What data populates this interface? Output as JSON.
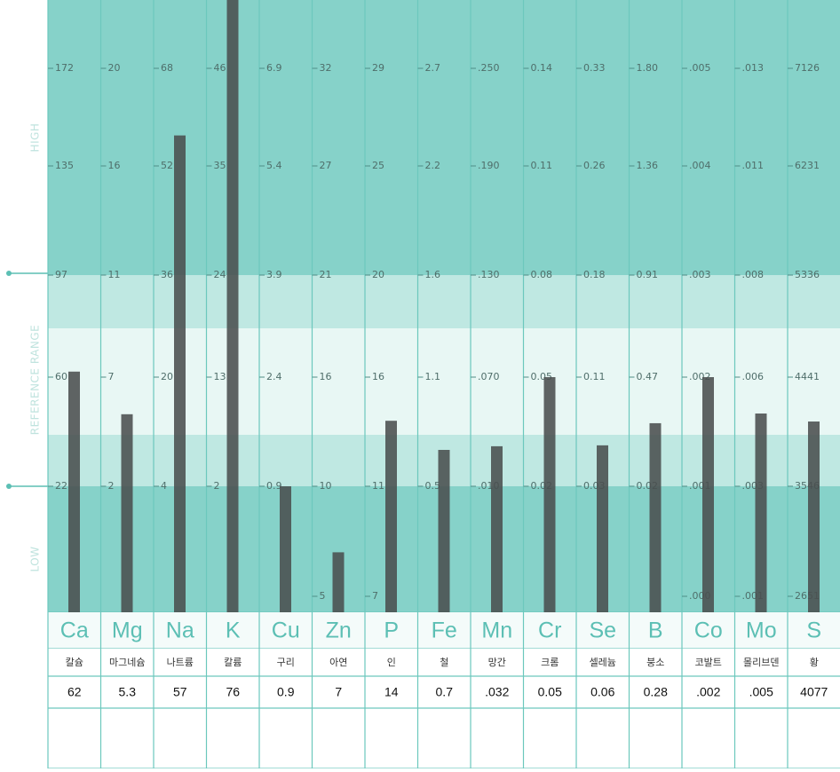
{
  "side_labels": {
    "high": "HIGH",
    "reference": "REFERENCE RANGE",
    "low": "LOW"
  },
  "columns": [
    {
      "symbol": "Ca",
      "name": "칼슘",
      "value": 62,
      "ticks": [
        172,
        135,
        97,
        60,
        22
      ]
    },
    {
      "symbol": "Mg",
      "name": "마그네슘",
      "value": 5.3,
      "ticks": [
        20,
        16,
        11,
        7,
        2
      ]
    },
    {
      "symbol": "Na",
      "name": "나트륨",
      "value": 57,
      "ticks": [
        68,
        52,
        36,
        20,
        4
      ]
    },
    {
      "symbol": "K",
      "name": "칼륨",
      "value": 76,
      "ticks": [
        46,
        35,
        24,
        13,
        2
      ]
    },
    {
      "symbol": "Cu",
      "name": "구리",
      "value": 0.9,
      "ticks": [
        6.9,
        5.4,
        3.9,
        2.4,
        0.9
      ]
    },
    {
      "symbol": "Zn",
      "name": "아연",
      "value": 7,
      "ticks": [
        32,
        27,
        21,
        16,
        10,
        5
      ]
    },
    {
      "symbol": "P",
      "name": "인",
      "value": 14,
      "ticks": [
        29,
        25,
        20,
        16,
        11,
        7
      ]
    },
    {
      "symbol": "Fe",
      "name": "철",
      "value": 0.7,
      "ticks": [
        2.7,
        2.2,
        1.6,
        1.1,
        0.5
      ]
    },
    {
      "symbol": "Mn",
      "name": "망간",
      "value": 0.032,
      "value_label": ".032",
      "ticks": [
        {
          "value": 0.25,
          "label": ".250"
        },
        {
          "value": 0.19,
          "label": ".190"
        },
        {
          "value": 0.13,
          "label": ".130"
        },
        {
          "value": 0.07,
          "label": ".070"
        },
        {
          "value": 0.01,
          "label": ".010"
        }
      ]
    },
    {
      "symbol": "Cr",
      "name": "크롬",
      "value": 0.05,
      "ticks": [
        0.14,
        0.11,
        0.08,
        0.05,
        0.02
      ]
    },
    {
      "symbol": "Se",
      "name": "셀레늄",
      "value": 0.06,
      "ticks": [
        0.33,
        0.26,
        0.18,
        0.11,
        0.03
      ]
    },
    {
      "symbol": "B",
      "name": "붕소",
      "value": 0.28,
      "ticks": [
        {
          "value": 1.8,
          "label": "1.80"
        },
        1.36,
        0.91,
        0.47,
        0.02
      ]
    },
    {
      "symbol": "Co",
      "name": "코발트",
      "value": 0.002,
      "value_label": ".002",
      "ticks": [
        {
          "value": 0.005,
          "label": ".005"
        },
        {
          "value": 0.004,
          "label": ".004"
        },
        {
          "value": 0.003,
          "label": ".003"
        },
        {
          "value": 0.002,
          "label": ".002"
        },
        {
          "value": 0.001,
          "label": ".001"
        },
        {
          "value": 0,
          "label": ".000"
        }
      ]
    },
    {
      "symbol": "Mo",
      "name": "몰리브덴",
      "value": 0.005,
      "value_label": ".005",
      "ticks": [
        {
          "value": 0.013,
          "label": ".013"
        },
        {
          "value": 0.011,
          "label": ".011"
        },
        {
          "value": 0.008,
          "label": ".008"
        },
        {
          "value": 0.006,
          "label": ".006"
        },
        {
          "value": 0.003,
          "label": ".003"
        },
        {
          "value": 0.001,
          "label": ".001"
        }
      ]
    },
    {
      "symbol": "S",
      "name": "황",
      "value": 4077,
      "ticks": [
        7126,
        6231,
        5336,
        4441,
        3546,
        2651
      ]
    }
  ]
}
